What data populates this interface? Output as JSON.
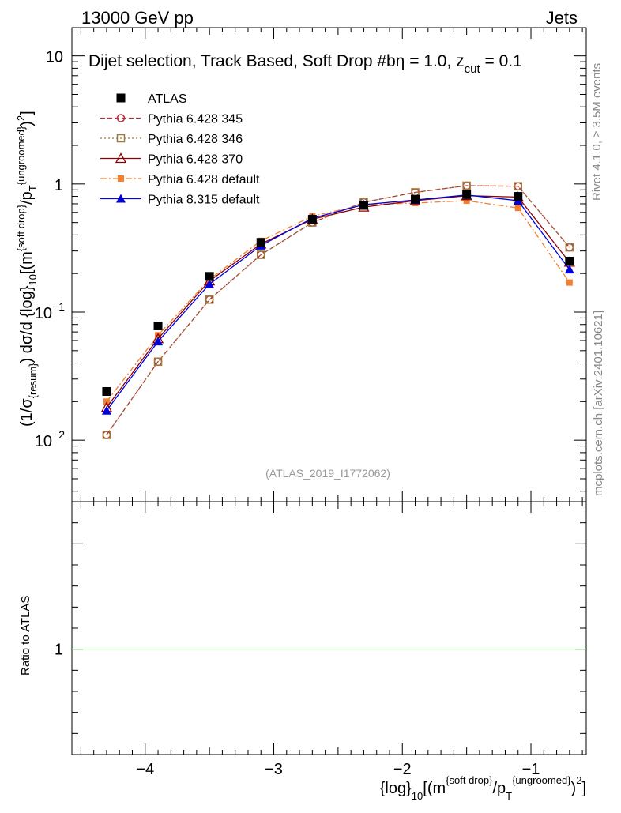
{
  "header": {
    "left": "13000 GeV pp",
    "right": "Jets"
  },
  "side_text": {
    "rivet": "Rivet 4.1.0, ≥ 3.5M events",
    "mcplots": "mcplots.cern.ch [arXiv:2401.10621]"
  },
  "colors": {
    "atlas": "#000000",
    "p345": "#b03040",
    "p346": "#a07838",
    "p370": "#8b0000",
    "p6def": "#f47f30",
    "p8": "#0000dd",
    "ratio_line": "#90ee90"
  },
  "chart_data": {
    "type": "scatter",
    "title": "Dijet selection, Track Based, Soft Drop #bη = 1.0, z",
    "title_sub": "cut",
    "title_tail": " = 0.1",
    "watermark": "(ATLAS_2019_I1772062)",
    "xlim": [
      -4.57,
      -0.57
    ],
    "ylim_log": [
      -2.48,
      1.22
    ],
    "ratio_ylim": [
      0.5,
      1.7
    ],
    "x_ticks": [
      -4,
      -3,
      -2,
      -1
    ],
    "x_tick_labels": [
      "−4",
      "−3",
      "−2",
      "−1"
    ],
    "y_ticks": [
      {
        "exp": 1,
        "label": "10"
      },
      {
        "exp": 0,
        "label": "1"
      },
      {
        "exp": -1,
        "label": "10",
        "sup": "−1"
      },
      {
        "exp": -2,
        "label": "10",
        "sup": "−2"
      }
    ],
    "ratio_y_tick_label": "1",
    "ylabel_main": "(1/σ{resum}) dσ/d {log}10[(m{soft drop}/pT{ungroomed})2]",
    "ylabel_ratio": "Ratio to ATLAS",
    "xlabel": "{log}10[(m{soft drop}/pT{ungroomed})2]",
    "x": [
      -4.3,
      -3.9,
      -3.5,
      -3.1,
      -2.7,
      -2.3,
      -1.9,
      -1.5,
      -1.1,
      -0.7
    ],
    "series": [
      {
        "key": "atlas",
        "name": "ATLAS",
        "marker": "filled-square",
        "dash": "none",
        "line": false,
        "values": [
          0.024,
          0.078,
          0.19,
          0.35,
          0.53,
          0.68,
          0.76,
          0.83,
          0.8,
          0.25
        ]
      },
      {
        "key": "p345",
        "name": "Pythia 6.428 345",
        "marker": "open-circle",
        "dash": "6,3",
        "line": true,
        "values": [
          0.011,
          0.041,
          0.125,
          0.28,
          0.5,
          0.72,
          0.86,
          0.97,
          0.96,
          0.32
        ]
      },
      {
        "key": "p346",
        "name": "Pythia 6.428 346",
        "marker": "open-square",
        "dash": "2,3",
        "line": true,
        "values": [
          0.011,
          0.041,
          0.125,
          0.28,
          0.5,
          0.72,
          0.86,
          0.97,
          0.96,
          0.32
        ]
      },
      {
        "key": "p370",
        "name": "Pythia 6.428 370",
        "marker": "open-triangle",
        "dash": "none",
        "line": true,
        "values": [
          0.018,
          0.062,
          0.175,
          0.34,
          0.53,
          0.66,
          0.74,
          0.81,
          0.79,
          0.245
        ]
      },
      {
        "key": "p6def",
        "name": "Pythia 6.428 default",
        "marker": "filled-square-small",
        "dash": "8,3,2,3",
        "line": true,
        "values": [
          0.02,
          0.066,
          0.18,
          0.36,
          0.56,
          0.69,
          0.71,
          0.74,
          0.65,
          0.17
        ]
      },
      {
        "key": "p8",
        "name": "Pythia 8.315 default",
        "marker": "filled-triangle",
        "dash": "none",
        "line": true,
        "values": [
          0.017,
          0.059,
          0.165,
          0.33,
          0.54,
          0.69,
          0.75,
          0.82,
          0.74,
          0.215
        ]
      }
    ]
  }
}
